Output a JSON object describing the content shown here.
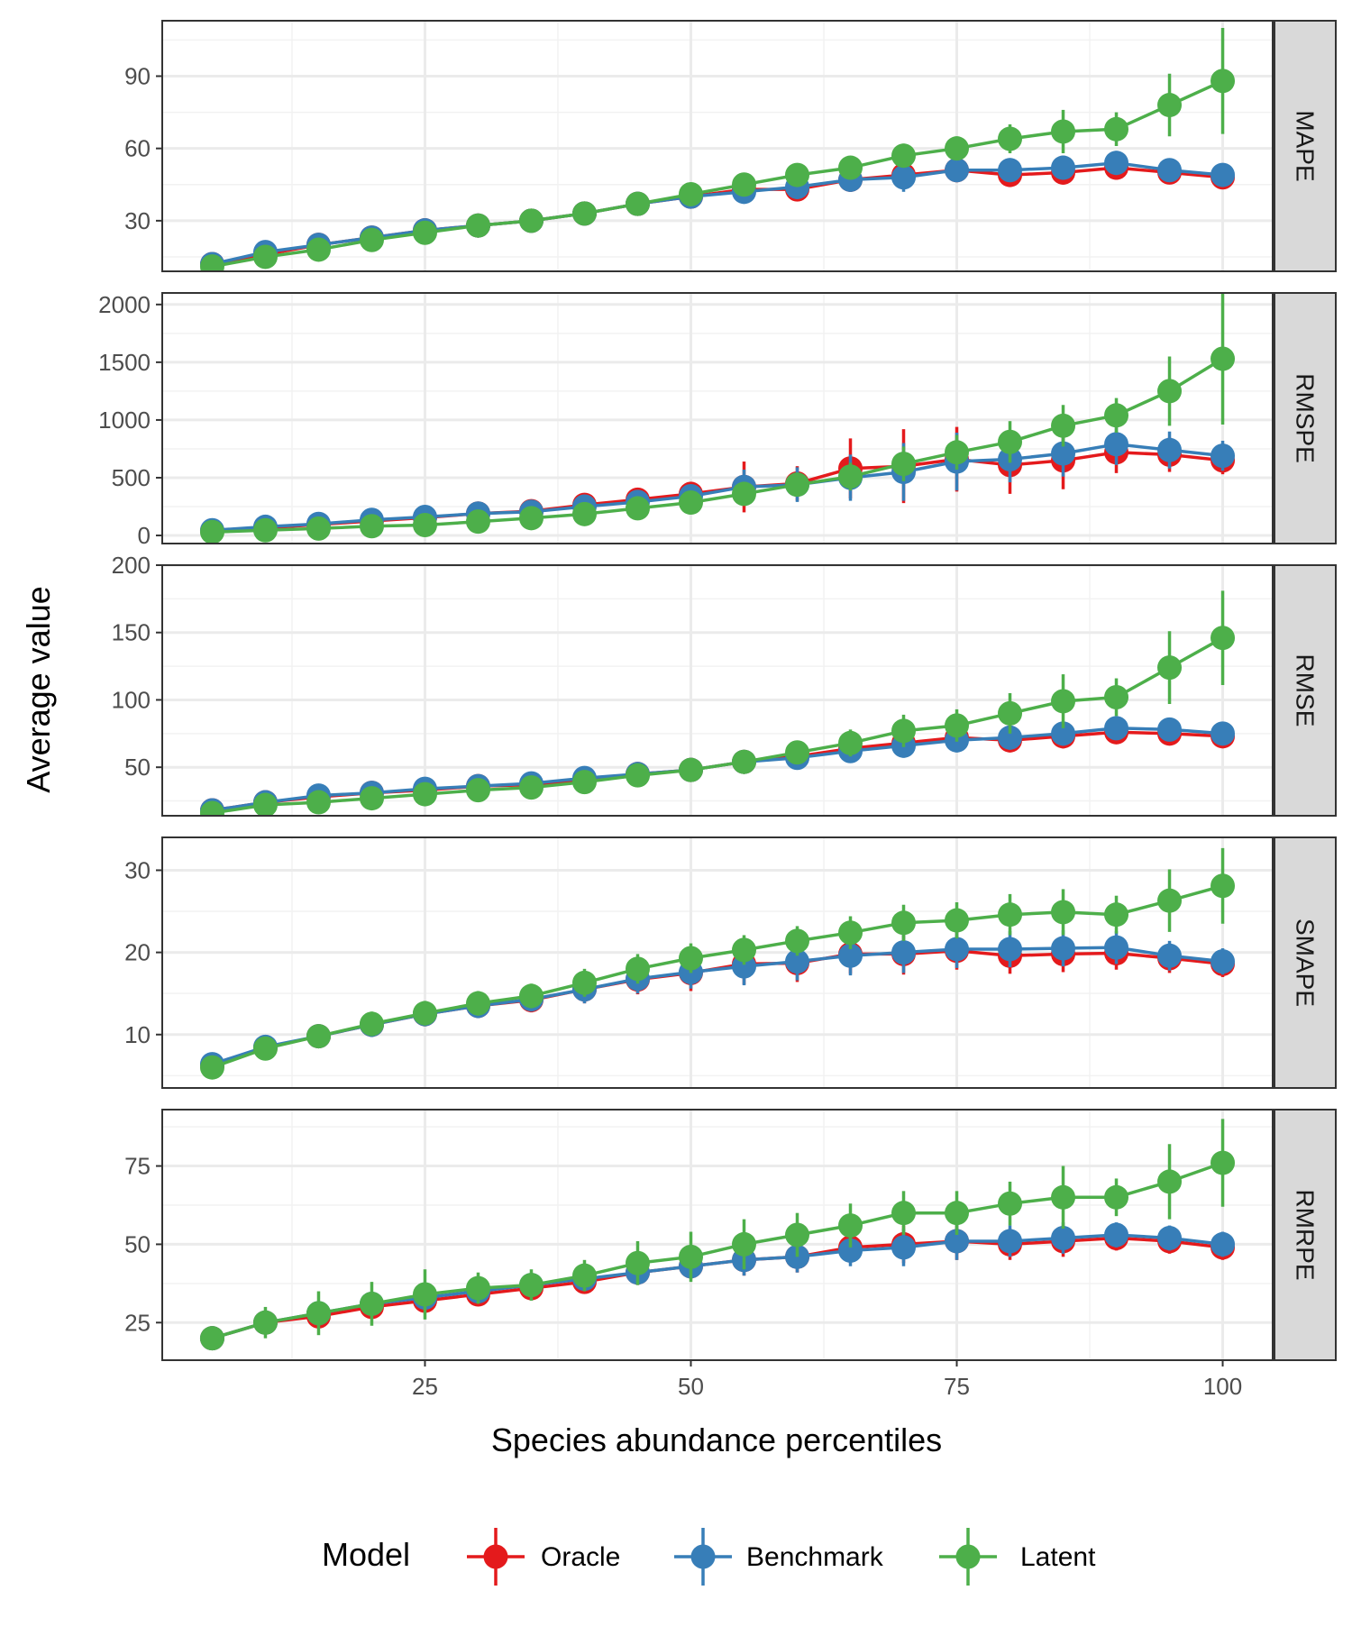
{
  "figure": {
    "ylabel": "Average value",
    "xlabel": "Species abundance percentiles",
    "legend_title": "Model",
    "legend_position": "bottom"
  },
  "colors": {
    "Oracle": "#E41A1C",
    "Benchmark": "#377EB8",
    "Latent": "#4DAF4A",
    "strip_bg": "#D9D9D9",
    "grid_major": "#EBEBEB",
    "grid_minor": "#F2F2F2"
  },
  "chart_data": {
    "type": "line",
    "facets": "rows",
    "x": [
      5,
      10,
      15,
      20,
      25,
      30,
      35,
      40,
      45,
      50,
      55,
      60,
      65,
      70,
      75,
      80,
      85,
      90,
      95,
      100
    ],
    "xlim": [
      5,
      100
    ],
    "xticks": [
      25,
      50,
      75,
      100
    ],
    "grid": true,
    "legend_placement": "bottom",
    "panels": [
      {
        "strip": "MAPE",
        "ylim": [
          9,
          113
        ],
        "yticks": [
          30,
          60,
          90
        ],
        "series": [
          {
            "name": "Oracle",
            "values": [
              12,
              16,
              20,
              23,
              26,
              28,
              30,
              33,
              37,
              40,
              43,
              43,
              47,
              49,
              51,
              49,
              50,
              52,
              50,
              48
            ],
            "err": [
              2,
              2,
              2,
              2,
              2,
              2,
              2,
              2,
              3,
              3,
              5,
              5,
              5,
              6,
              5,
              5,
              5,
              5,
              4,
              4
            ]
          },
          {
            "name": "Benchmark",
            "values": [
              12,
              17,
              20,
              23,
              26,
              28,
              30,
              33,
              37,
              40,
              42,
              44,
              47,
              48,
              51,
              51,
              52,
              54,
              51,
              49
            ],
            "err": [
              2,
              2,
              2,
              2,
              2,
              2,
              2,
              2,
              3,
              3,
              5,
              5,
              5,
              6,
              5,
              5,
              5,
              5,
              4,
              4
            ]
          },
          {
            "name": "Latent",
            "values": [
              11,
              15,
              18,
              22,
              25,
              28,
              30,
              33,
              37,
              41,
              45,
              49,
              52,
              57,
              60,
              64,
              67,
              68,
              78,
              88
            ],
            "err": [
              2,
              2,
              2,
              2,
              2,
              2,
              2,
              2,
              3,
              3,
              4,
              4,
              4,
              5,
              5,
              6,
              9,
              7,
              13,
              22
            ]
          }
        ]
      },
      {
        "strip": "RMSPE",
        "ylim": [
          -70,
          2100
        ],
        "yticks": [
          0,
          500,
          1000,
          1500,
          2000
        ],
        "series": [
          {
            "name": "Oracle",
            "values": [
              40,
              65,
              95,
              125,
              155,
              190,
              210,
              265,
              310,
              360,
              420,
              450,
              580,
              600,
              660,
              610,
              650,
              720,
              700,
              650
            ],
            "err": [
              15,
              20,
              25,
              30,
              35,
              40,
              45,
              55,
              60,
              80,
              220,
              150,
              260,
              320,
              280,
              250,
              250,
              180,
              150,
              120
            ]
          },
          {
            "name": "Benchmark",
            "values": [
              45,
              75,
              100,
              135,
              160,
              190,
              205,
              250,
              290,
              340,
              420,
              440,
              500,
              550,
              640,
              660,
              710,
              790,
              740,
              690
            ],
            "err": [
              15,
              20,
              25,
              30,
              35,
              40,
              45,
              55,
              60,
              80,
              150,
              150,
              200,
              250,
              250,
              200,
              200,
              180,
              160,
              130
            ]
          },
          {
            "name": "Latent",
            "values": [
              30,
              45,
              60,
              80,
              90,
              120,
              150,
              185,
              235,
              285,
              360,
              440,
              510,
              620,
              720,
              810,
              950,
              1040,
              1250,
              1530
            ],
            "err": [
              15,
              20,
              25,
              30,
              35,
              40,
              45,
              50,
              60,
              70,
              100,
              100,
              120,
              150,
              150,
              180,
              180,
              150,
              300,
              570
            ]
          }
        ]
      },
      {
        "strip": "RMSE",
        "ylim": [
          14,
          200
        ],
        "yticks": [
          50,
          100,
          150,
          200
        ],
        "series": [
          {
            "name": "Oracle",
            "values": [
              18,
              24,
              28,
              31,
              33,
              36,
              37,
              41,
              45,
              48,
              54,
              58,
              64,
              68,
              72,
              70,
              73,
              76,
              75,
              73
            ],
            "err": [
              3,
              3,
              4,
              4,
              4,
              4,
              4,
              5,
              6,
              6,
              8,
              8,
              8,
              9,
              9,
              9,
              9,
              8,
              8,
              7
            ]
          },
          {
            "name": "Benchmark",
            "values": [
              18,
              24,
              29,
              31,
              34,
              36,
              38,
              42,
              45,
              48,
              54,
              57,
              62,
              66,
              70,
              72,
              75,
              79,
              78,
              75
            ],
            "err": [
              3,
              3,
              4,
              4,
              4,
              4,
              4,
              5,
              6,
              6,
              8,
              8,
              8,
              9,
              9,
              9,
              9,
              8,
              8,
              7
            ]
          },
          {
            "name": "Latent",
            "values": [
              16,
              22,
              24,
              27,
              30,
              33,
              35,
              39,
              44,
              48,
              54,
              61,
              68,
              77,
              81,
              90,
              99,
              102,
              124,
              146
            ],
            "err": [
              3,
              3,
              4,
              4,
              4,
              4,
              4,
              5,
              6,
              6,
              8,
              8,
              10,
              12,
              12,
              15,
              20,
              14,
              27,
              35
            ]
          }
        ]
      },
      {
        "strip": "SMAPE",
        "ylim": [
          3.5,
          34
        ],
        "yticks": [
          10,
          20,
          30
        ],
        "series": [
          {
            "name": "Oracle",
            "values": [
              6.2,
              8.4,
              9.8,
              11.2,
              12.5,
              13.5,
              14.2,
              15.5,
              16.7,
              17.5,
              18.6,
              18.7,
              19.8,
              19.8,
              20.2,
              19.6,
              19.8,
              19.9,
              19.3,
              18.6
            ],
            "err": [
              1.2,
              1.3,
              1.4,
              1.5,
              1.5,
              1.5,
              1.5,
              1.7,
              1.8,
              2.2,
              2.5,
              2.3,
              2.4,
              2.5,
              2.3,
              2.2,
              2.2,
              2.0,
              1.8,
              1.6
            ]
          },
          {
            "name": "Benchmark",
            "values": [
              6.4,
              8.5,
              9.8,
              11.2,
              12.5,
              13.5,
              14.3,
              15.5,
              16.8,
              17.6,
              18.3,
              18.9,
              19.6,
              20.0,
              20.4,
              20.4,
              20.5,
              20.6,
              19.6,
              18.9
            ],
            "err": [
              1.2,
              1.3,
              1.4,
              1.5,
              1.5,
              1.5,
              1.5,
              1.7,
              1.8,
              2.0,
              2.3,
              2.3,
              2.4,
              2.5,
              2.3,
              2.2,
              2.2,
              2.0,
              1.8,
              1.6
            ]
          },
          {
            "name": "Latent",
            "values": [
              6.0,
              8.3,
              9.8,
              11.3,
              12.6,
              13.8,
              14.7,
              16.3,
              18.0,
              19.3,
              20.3,
              21.4,
              22.4,
              23.6,
              23.9,
              24.6,
              24.9,
              24.6,
              26.3,
              28.1
            ],
            "err": [
              1.2,
              1.3,
              1.4,
              1.5,
              1.5,
              1.5,
              1.5,
              1.7,
              1.8,
              1.8,
              1.8,
              1.8,
              2.0,
              2.2,
              2.2,
              2.5,
              2.8,
              2.3,
              3.8,
              4.6
            ]
          }
        ]
      },
      {
        "strip": "RMRPE",
        "ylim": [
          13,
          93
        ],
        "yticks": [
          25,
          50,
          75
        ],
        "series": [
          {
            "name": "Oracle",
            "values": [
              20,
              25,
              27,
              30,
              32,
              34,
              36,
              38,
              41,
              43,
              45,
              46,
              49,
              50,
              51,
              50,
              51,
              52,
              51,
              49
            ],
            "err": [
              2,
              3,
              3,
              3,
              3,
              3,
              3,
              3,
              4,
              4,
              5,
              5,
              5,
              6,
              6,
              5,
              5,
              4,
              4,
              4
            ]
          },
          {
            "name": "Benchmark",
            "values": [
              20,
              25,
              28,
              31,
              33,
              35,
              37,
              39,
              41,
              43,
              45,
              46,
              48,
              49,
              51,
              51,
              52,
              53,
              52,
              50
            ],
            "err": [
              2,
              3,
              3,
              3,
              3,
              3,
              3,
              3,
              4,
              4,
              5,
              5,
              5,
              6,
              6,
              5,
              5,
              4,
              4,
              4
            ]
          },
          {
            "name": "Latent",
            "values": [
              20,
              25,
              28,
              31,
              34,
              36,
              37,
              40,
              44,
              46,
              50,
              53,
              56,
              60,
              60,
              63,
              65,
              65,
              70,
              76
            ],
            "err": [
              3,
              5,
              7,
              7,
              8,
              5,
              5,
              5,
              7,
              8,
              8,
              7,
              7,
              7,
              7,
              7,
              10,
              6,
              12,
              14
            ]
          }
        ]
      }
    ]
  }
}
